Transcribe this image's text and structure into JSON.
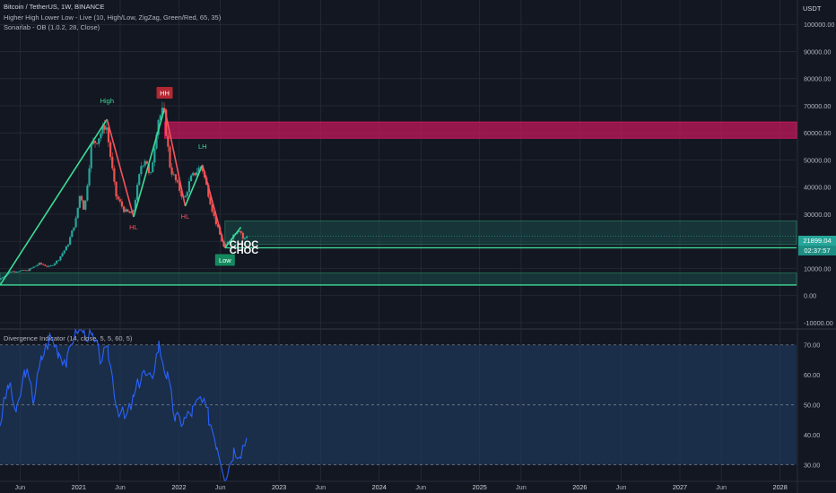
{
  "header": {
    "title": "Bitcoin / TetherUS, 1W, BINANCE",
    "indicator1": "Higher High Lower Low - Live (10, High/Low, ZigZag, Green/Red, 65, 35)",
    "indicator2": "Sonarlab - OB (1.0.2, 28, Close)",
    "oscillator": "Divergence Indicator (14, close, 5, 5, 60, 5)"
  },
  "price_axis": {
    "currency": "USDT",
    "last_price": "21899.04",
    "countdown": "02:37:57"
  },
  "colors": {
    "background": "#131722",
    "grid": "#2a2e39",
    "up": "#26a69a",
    "down": "#ef5350",
    "zigzag_up": "#3ddc97",
    "zigzag_down": "#f7525f",
    "bear_ob": "#c2185b",
    "bull_ob": "#1c5a55",
    "rsi_line": "#2962ff",
    "rsi_band": "#1e3a5f"
  },
  "chart_data": [
    {
      "type": "candlestick",
      "title": "Bitcoin / TetherUS, 1W, BINANCE",
      "y_axis_ticks": [
        -10000,
        0,
        10000,
        20000,
        30000,
        40000,
        50000,
        60000,
        70000,
        80000,
        90000,
        100000
      ],
      "y_tick_labels": [
        "-10000.00",
        "0.00",
        "10000.00",
        "20000.00",
        "30000.00",
        "40000.00",
        "50000.00",
        "60000.00",
        "70000.00",
        "80000.00",
        "90000.00",
        "100000.00"
      ],
      "x_axis_labels": [
        "Jun",
        "2021",
        "Jun",
        "2022",
        "Jun",
        "2023",
        "Jun",
        "2024",
        "Jun",
        "2025",
        "Jun",
        "2026",
        "Jun",
        "2027",
        "Jun",
        "2028"
      ],
      "x_axis_dates": [
        "2020-06-01",
        "2021-01-01",
        "2021-06-01",
        "2022-01-01",
        "2022-06-01",
        "2023-01-01",
        "2023-06-01",
        "2024-01-01",
        "2024-06-01",
        "2025-01-01",
        "2025-06-01",
        "2026-01-01",
        "2026-06-01",
        "2027-01-01",
        "2027-06-01",
        "2028-01-01"
      ],
      "x_range": [
        "2020-03-20",
        "2028-03-01"
      ],
      "y_range": [
        -12000,
        109000
      ],
      "grid": true,
      "price_path": [
        [
          "2020-03-20",
          5900
        ],
        [
          "2020-05-01",
          8900
        ],
        [
          "2020-07-01",
          9200
        ],
        [
          "2020-08-15",
          11800
        ],
        [
          "2020-09-20",
          10500
        ],
        [
          "2020-10-20",
          13000
        ],
        [
          "2020-11-25",
          18500
        ],
        [
          "2020-12-25",
          28000
        ],
        [
          "2021-01-10",
          38000
        ],
        [
          "2021-01-25",
          31000
        ],
        [
          "2021-02-20",
          56000
        ],
        [
          "2021-03-10",
          57000
        ],
        [
          "2021-04-14",
          63500
        ],
        [
          "2021-05-19",
          37000
        ],
        [
          "2021-06-22",
          31000
        ],
        [
          "2021-07-20",
          30000
        ],
        [
          "2021-08-20",
          48000
        ],
        [
          "2021-09-07",
          51000
        ],
        [
          "2021-09-21",
          42000
        ],
        [
          "2021-10-20",
          65000
        ],
        [
          "2021-11-10",
          68500
        ],
        [
          "2021-12-04",
          47000
        ],
        [
          "2022-01-24",
          35000
        ],
        [
          "2022-02-15",
          43000
        ],
        [
          "2022-03-28",
          48000
        ],
        [
          "2022-05-10",
          30000
        ],
        [
          "2022-06-18",
          17600
        ],
        [
          "2022-07-30",
          23500
        ],
        [
          "2022-08-15",
          24500
        ],
        [
          "2022-08-29",
          20000
        ],
        [
          "2022-09-05",
          21899
        ]
      ],
      "zigzag": [
        [
          "2020-03-20",
          3800
        ],
        [
          "2021-04-14",
          65000
        ],
        [
          "2021-07-20",
          29000
        ],
        [
          "2021-11-10",
          69000
        ],
        [
          "2022-01-24",
          33000
        ],
        [
          "2022-03-28",
          48200
        ],
        [
          "2022-06-18",
          17600
        ],
        [
          "2022-08-15",
          25200
        ]
      ],
      "zigzag_labels": [
        {
          "text": "High",
          "date": "2021-04-14",
          "value": 65000
        },
        {
          "text": "HL",
          "date": "2021-07-20",
          "value": 29000
        },
        {
          "text": "HH",
          "date": "2021-11-10",
          "value": 69000
        },
        {
          "text": "HL",
          "date": "2022-01-24",
          "value": 33000
        },
        {
          "text": "LH",
          "date": "2022-03-28",
          "value": 48200
        },
        {
          "text": "Low",
          "date": "2022-06-18",
          "value": 17600
        }
      ],
      "annotations": [
        {
          "text": "CHOC",
          "date": "2022-07-01",
          "value": 19000
        },
        {
          "text": "CHOC",
          "date": "2022-07-01",
          "value": 16800
        }
      ],
      "order_blocks": [
        {
          "kind": "bearish",
          "from": "2021-11-10",
          "top": 64000,
          "bottom": 58000
        },
        {
          "kind": "bullish",
          "from": "2022-06-18",
          "top": 27500,
          "bottom": 18800
        },
        {
          "kind": "bullish",
          "from": "2020-03-20",
          "top": 8300,
          "bottom": 3900
        }
      ],
      "levels": [
        {
          "from": "2022-06-18",
          "value": 17600
        },
        {
          "from": "2020-03-20",
          "value": 3900
        }
      ],
      "last_price": 21899.04
    },
    {
      "type": "line",
      "title": "Divergence Indicator (14, close, 5, 5, 60, 5)",
      "y_axis_ticks": [
        30,
        40,
        50,
        60,
        70
      ],
      "y_tick_labels": [
        "30.00",
        "40.00",
        "50.00",
        "60.00",
        "70.00"
      ],
      "y_range": [
        24.5,
        75
      ],
      "band": [
        30,
        70
      ],
      "midline": 50,
      "rsi": [
        [
          "2020-03-20",
          44
        ],
        [
          "2020-04-20",
          57
        ],
        [
          "2020-05-20",
          47
        ],
        [
          "2020-06-20",
          62
        ],
        [
          "2020-07-20",
          52
        ],
        [
          "2020-08-20",
          66
        ],
        [
          "2020-09-20",
          73
        ],
        [
          "2020-10-20",
          68
        ],
        [
          "2020-11-20",
          64
        ],
        [
          "2020-12-20",
          76
        ],
        [
          "2021-01-20",
          75
        ],
        [
          "2021-02-20",
          72
        ],
        [
          "2021-03-20",
          66
        ],
        [
          "2021-04-20",
          67
        ],
        [
          "2021-05-20",
          50
        ],
        [
          "2021-06-20",
          45
        ],
        [
          "2021-07-20",
          52
        ],
        [
          "2021-08-20",
          61
        ],
        [
          "2021-09-20",
          58
        ],
        [
          "2021-10-20",
          70
        ],
        [
          "2021-11-20",
          59
        ],
        [
          "2021-12-20",
          45
        ],
        [
          "2022-01-20",
          45
        ],
        [
          "2022-02-20",
          48
        ],
        [
          "2022-03-20",
          52
        ],
        [
          "2022-04-20",
          46
        ],
        [
          "2022-05-20",
          37
        ],
        [
          "2022-06-20",
          26
        ],
        [
          "2022-07-20",
          35
        ],
        [
          "2022-08-15",
          35
        ],
        [
          "2022-09-05",
          39
        ]
      ]
    }
  ]
}
